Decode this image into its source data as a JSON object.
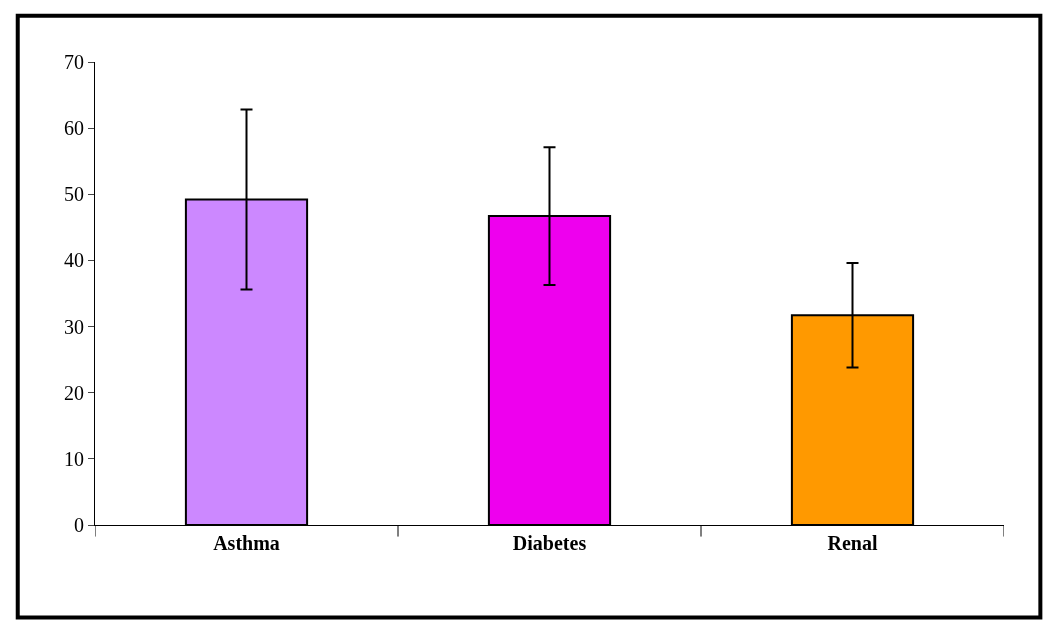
{
  "chart_data": {
    "type": "bar",
    "categories": [
      "Asthma",
      "Diabetes",
      "Renal"
    ],
    "values": [
      49.2,
      46.7,
      31.7
    ],
    "errors": [
      13.6,
      10.4,
      7.9
    ],
    "colors": [
      "#cc88ff",
      "#ee00ee",
      "#ff9900"
    ],
    "ylim": [
      0,
      70
    ],
    "yticks": [
      0,
      10,
      20,
      30,
      40,
      50,
      60,
      70
    ]
  }
}
